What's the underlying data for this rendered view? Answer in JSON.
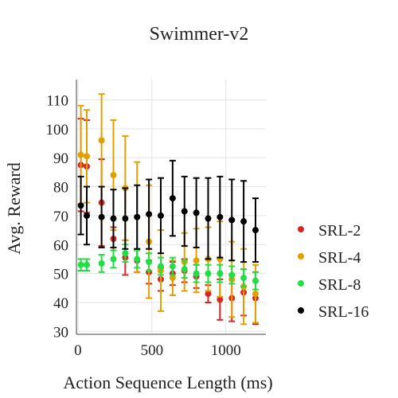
{
  "chart_data": {
    "type": "scatter",
    "title": "Swimmer-v2",
    "xlabel": "Action Sequence Length (ms)",
    "ylabel": "Avg. Reward",
    "xlim": [
      -10,
      1270
    ],
    "ylim": [
      29,
      117
    ],
    "xticks": [
      0,
      500,
      1000
    ],
    "yticks": [
      30,
      40,
      50,
      60,
      70,
      80,
      90,
      100,
      110
    ],
    "grid": true,
    "legend_position": "right",
    "error_bars": true,
    "series": [
      {
        "name": "SRL-2",
        "color": "#d62728",
        "points": [
          {
            "x": 20,
            "y": 87.5,
            "err": 16
          },
          {
            "x": 60,
            "y": 87,
            "err": 16
          },
          {
            "x": 160,
            "y": 74.5,
            "err": 15
          },
          {
            "x": 240,
            "y": 62,
            "err": 4
          },
          {
            "x": 320,
            "y": 55.5,
            "err": 6
          },
          {
            "x": 400,
            "y": 54.5,
            "err": 4
          },
          {
            "x": 480,
            "y": 50.5,
            "err": 4
          },
          {
            "x": 560,
            "y": 48,
            "err": 4
          },
          {
            "x": 640,
            "y": 50,
            "err": 4
          },
          {
            "x": 720,
            "y": 51,
            "err": 4
          },
          {
            "x": 800,
            "y": 49,
            "err": 4
          },
          {
            "x": 880,
            "y": 43,
            "err": 3
          },
          {
            "x": 960,
            "y": 41,
            "err": 7
          },
          {
            "x": 1040,
            "y": 41.5,
            "err": 8
          },
          {
            "x": 1120,
            "y": 43.5,
            "err": 8
          },
          {
            "x": 1200,
            "y": 41.5,
            "err": 9
          }
        ]
      },
      {
        "name": "SRL-4",
        "color": "#e0a000",
        "points": [
          {
            "x": 20,
            "y": 91,
            "err": 17
          },
          {
            "x": 60,
            "y": 90.5,
            "err": 16
          },
          {
            "x": 160,
            "y": 96,
            "err": 16
          },
          {
            "x": 240,
            "y": 84,
            "err": 19
          },
          {
            "x": 320,
            "y": 79.5,
            "err": 18
          },
          {
            "x": 400,
            "y": 69.5,
            "err": 19
          },
          {
            "x": 480,
            "y": 61,
            "err": 19.5
          },
          {
            "x": 560,
            "y": 51,
            "err": 14
          },
          {
            "x": 640,
            "y": 48.5,
            "err": 6
          },
          {
            "x": 720,
            "y": 54,
            "err": 10
          },
          {
            "x": 800,
            "y": 54.5,
            "err": 11
          },
          {
            "x": 880,
            "y": 55,
            "err": 11
          },
          {
            "x": 960,
            "y": 55,
            "err": 13
          },
          {
            "x": 1040,
            "y": 48,
            "err": 13
          },
          {
            "x": 1120,
            "y": 45.5,
            "err": 13
          },
          {
            "x": 1200,
            "y": 43,
            "err": 10
          }
        ]
      },
      {
        "name": "SRL-8",
        "color": "#22dd44",
        "points": [
          {
            "x": 20,
            "y": 53,
            "err": 2
          },
          {
            "x": 60,
            "y": 53,
            "err": 2
          },
          {
            "x": 160,
            "y": 53.5,
            "err": 3
          },
          {
            "x": 240,
            "y": 55,
            "err": 3
          },
          {
            "x": 320,
            "y": 57,
            "err": 3
          },
          {
            "x": 400,
            "y": 55,
            "err": 3
          },
          {
            "x": 480,
            "y": 54,
            "err": 3
          },
          {
            "x": 560,
            "y": 52.5,
            "err": 3
          },
          {
            "x": 640,
            "y": 52.5,
            "err": 3
          },
          {
            "x": 720,
            "y": 51.5,
            "err": 3
          },
          {
            "x": 800,
            "y": 50,
            "err": 3
          },
          {
            "x": 880,
            "y": 50,
            "err": 3
          },
          {
            "x": 960,
            "y": 50,
            "err": 3
          },
          {
            "x": 1040,
            "y": 49.5,
            "err": 3
          },
          {
            "x": 1120,
            "y": 48.5,
            "err": 3
          },
          {
            "x": 1200,
            "y": 47.5,
            "err": 3
          }
        ]
      },
      {
        "name": "SRL-16",
        "color": "#000000",
        "points": [
          {
            "x": 20,
            "y": 73.5,
            "err": 10
          },
          {
            "x": 60,
            "y": 70,
            "err": 10
          },
          {
            "x": 160,
            "y": 69.5,
            "err": 10.5
          },
          {
            "x": 240,
            "y": 69,
            "err": 10
          },
          {
            "x": 320,
            "y": 69,
            "err": 10.5
          },
          {
            "x": 400,
            "y": 69.5,
            "err": 11
          },
          {
            "x": 480,
            "y": 70.5,
            "err": 12
          },
          {
            "x": 560,
            "y": 70,
            "err": 13
          },
          {
            "x": 640,
            "y": 76,
            "err": 13
          },
          {
            "x": 720,
            "y": 71.5,
            "err": 12
          },
          {
            "x": 800,
            "y": 71,
            "err": 12
          },
          {
            "x": 880,
            "y": 69,
            "err": 14
          },
          {
            "x": 960,
            "y": 69.5,
            "err": 14
          },
          {
            "x": 1040,
            "y": 68.5,
            "err": 14
          },
          {
            "x": 1120,
            "y": 68,
            "err": 14
          },
          {
            "x": 1200,
            "y": 65,
            "err": 11
          }
        ]
      }
    ]
  }
}
